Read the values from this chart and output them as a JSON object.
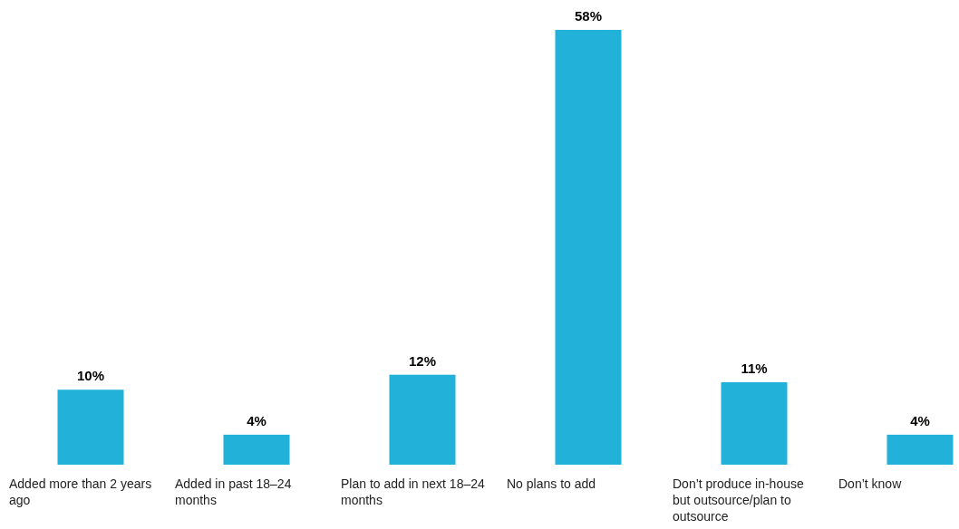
{
  "chart_data": {
    "type": "bar",
    "categories": [
      "Added more than 2 years ago",
      "Added in past 18–24 months",
      "Plan to add in next 18–24 months",
      "No plans to add",
      "Don’t produce in-house but outsource/plan to outsource",
      "Don’t know"
    ],
    "values": [
      10,
      4,
      12,
      58,
      11,
      4
    ],
    "color": "#21b1d9",
    "value_labels": [
      "10%",
      "4%",
      "12%",
      "58%",
      "11%",
      "4%"
    ]
  }
}
